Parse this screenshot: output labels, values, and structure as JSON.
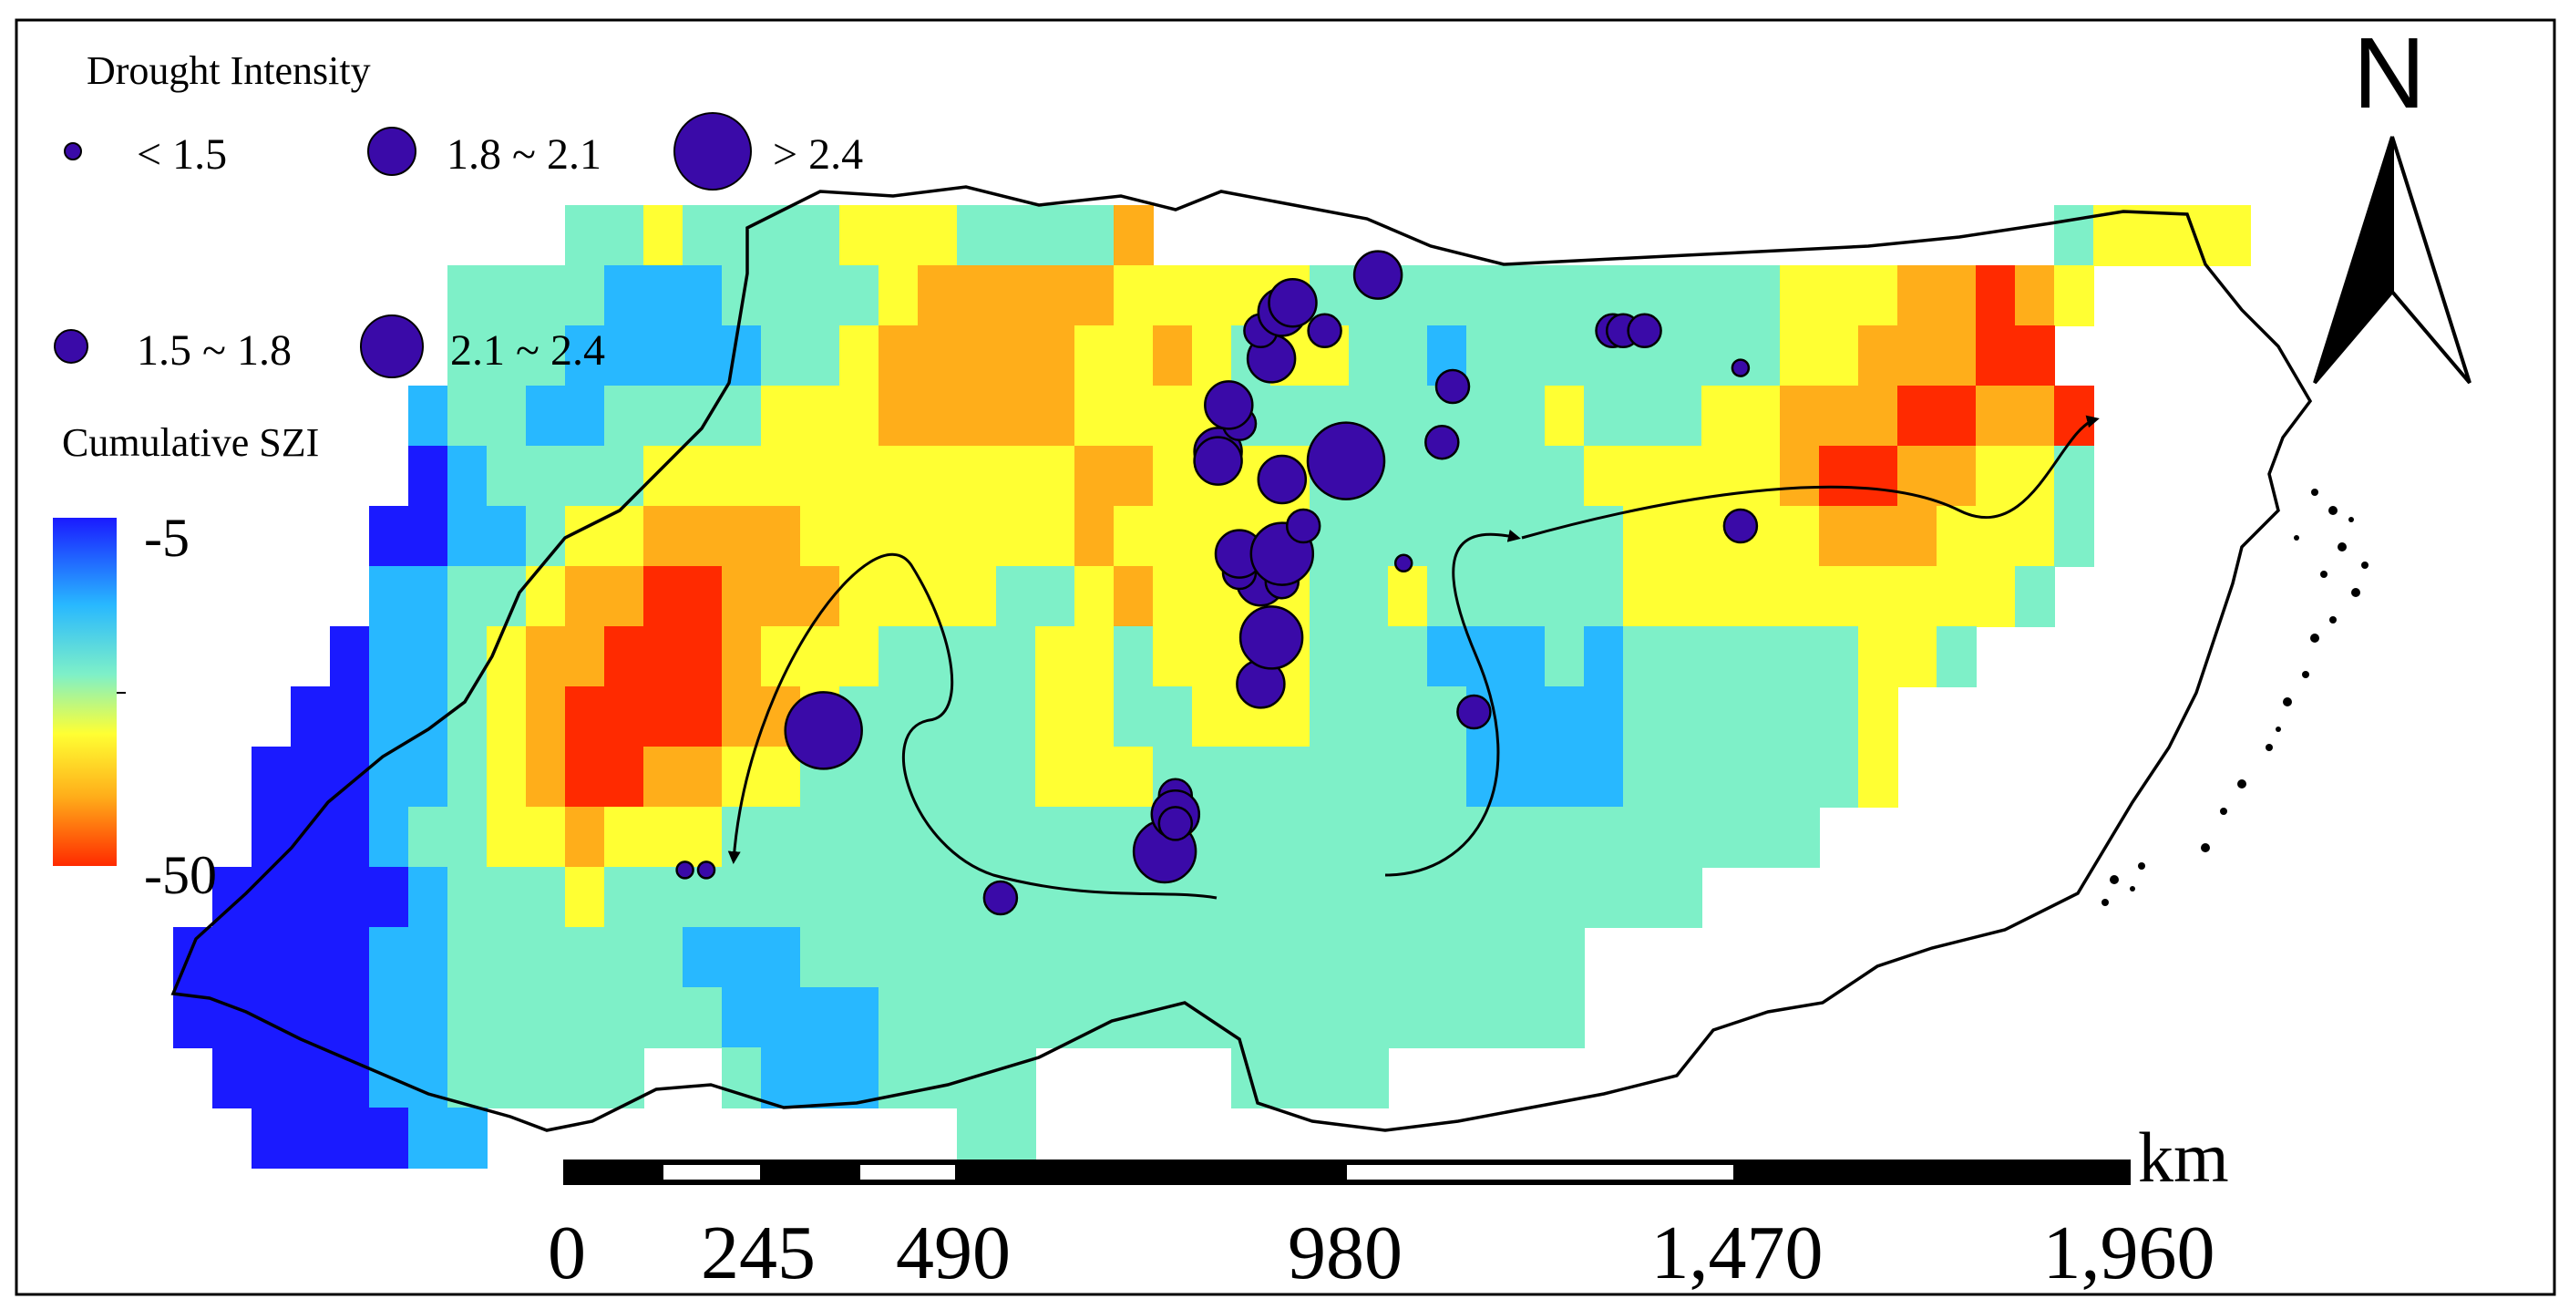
{
  "legend": {
    "drought_title": "Drought Intensity",
    "classes": [
      {
        "label": "< 1.5",
        "size_rank": 1
      },
      {
        "label": "1.8 ~ 2.1",
        "size_rank": 3
      },
      {
        "label": "> 2.4",
        "size_rank": 5
      },
      {
        "label": "1.5 ~ 1.8",
        "size_rank": 2
      },
      {
        "label": "2.1 ~ 2.4",
        "size_rank": 4
      }
    ],
    "szi_title": "Cumulative SZI",
    "szi_max": "-5",
    "szi_min": "-50"
  },
  "scale_bar": {
    "unit": "km",
    "ticks": [
      "0",
      "245",
      "490",
      "980",
      "1,470",
      "1,960"
    ]
  },
  "north_arrow": {
    "label": "N"
  },
  "colors": {
    "circle_fill": "#3a0aa8",
    "ramp": [
      "#1a1aff",
      "#28b8ff",
      "#7ef0c8",
      "#ffff33",
      "#ffae1a",
      "#ff2a00"
    ]
  },
  "drought_events": [
    {
      "lon": 0.305,
      "lat": 0.43,
      "class": 5
    },
    {
      "lon": 0.24,
      "lat": 0.28,
      "class": 1
    },
    {
      "lon": 0.25,
      "lat": 0.28,
      "class": 1
    },
    {
      "lon": 0.388,
      "lat": 0.25,
      "class": 2
    },
    {
      "lon": 0.465,
      "lat": 0.3,
      "class": 4
    },
    {
      "lon": 0.47,
      "lat": 0.36,
      "class": 2
    },
    {
      "lon": 0.47,
      "lat": 0.34,
      "class": 3
    },
    {
      "lon": 0.47,
      "lat": 0.33,
      "class": 2
    },
    {
      "lon": 0.51,
      "lat": 0.48,
      "class": 3
    },
    {
      "lon": 0.51,
      "lat": 0.59,
      "class": 3
    },
    {
      "lon": 0.5,
      "lat": 0.6,
      "class": 2
    },
    {
      "lon": 0.5,
      "lat": 0.62,
      "class": 3
    },
    {
      "lon": 0.515,
      "lat": 0.53,
      "class": 4
    },
    {
      "lon": 0.52,
      "lat": 0.59,
      "class": 2
    },
    {
      "lon": 0.52,
      "lat": 0.62,
      "class": 4
    },
    {
      "lon": 0.49,
      "lat": 0.73,
      "class": 3
    },
    {
      "lon": 0.49,
      "lat": 0.72,
      "class": 3
    },
    {
      "lon": 0.5,
      "lat": 0.76,
      "class": 2
    },
    {
      "lon": 0.495,
      "lat": 0.78,
      "class": 3
    },
    {
      "lon": 0.515,
      "lat": 0.83,
      "class": 3
    },
    {
      "lon": 0.51,
      "lat": 0.86,
      "class": 2
    },
    {
      "lon": 0.52,
      "lat": 0.88,
      "class": 3
    },
    {
      "lon": 0.525,
      "lat": 0.89,
      "class": 3
    },
    {
      "lon": 0.54,
      "lat": 0.86,
      "class": 2
    },
    {
      "lon": 0.55,
      "lat": 0.72,
      "class": 5
    },
    {
      "lon": 0.52,
      "lat": 0.7,
      "class": 3
    },
    {
      "lon": 0.53,
      "lat": 0.65,
      "class": 2
    },
    {
      "lon": 0.565,
      "lat": 0.92,
      "class": 3
    },
    {
      "lon": 0.595,
      "lat": 0.74,
      "class": 2
    },
    {
      "lon": 0.6,
      "lat": 0.8,
      "class": 2
    },
    {
      "lon": 0.577,
      "lat": 0.61,
      "class": 1
    },
    {
      "lon": 0.61,
      "lat": 0.45,
      "class": 2
    },
    {
      "lon": 0.675,
      "lat": 0.86,
      "class": 2
    },
    {
      "lon": 0.68,
      "lat": 0.86,
      "class": 2
    },
    {
      "lon": 0.69,
      "lat": 0.86,
      "class": 2
    },
    {
      "lon": 0.735,
      "lat": 0.82,
      "class": 1
    },
    {
      "lon": 0.735,
      "lat": 0.65,
      "class": 2
    }
  ]
}
